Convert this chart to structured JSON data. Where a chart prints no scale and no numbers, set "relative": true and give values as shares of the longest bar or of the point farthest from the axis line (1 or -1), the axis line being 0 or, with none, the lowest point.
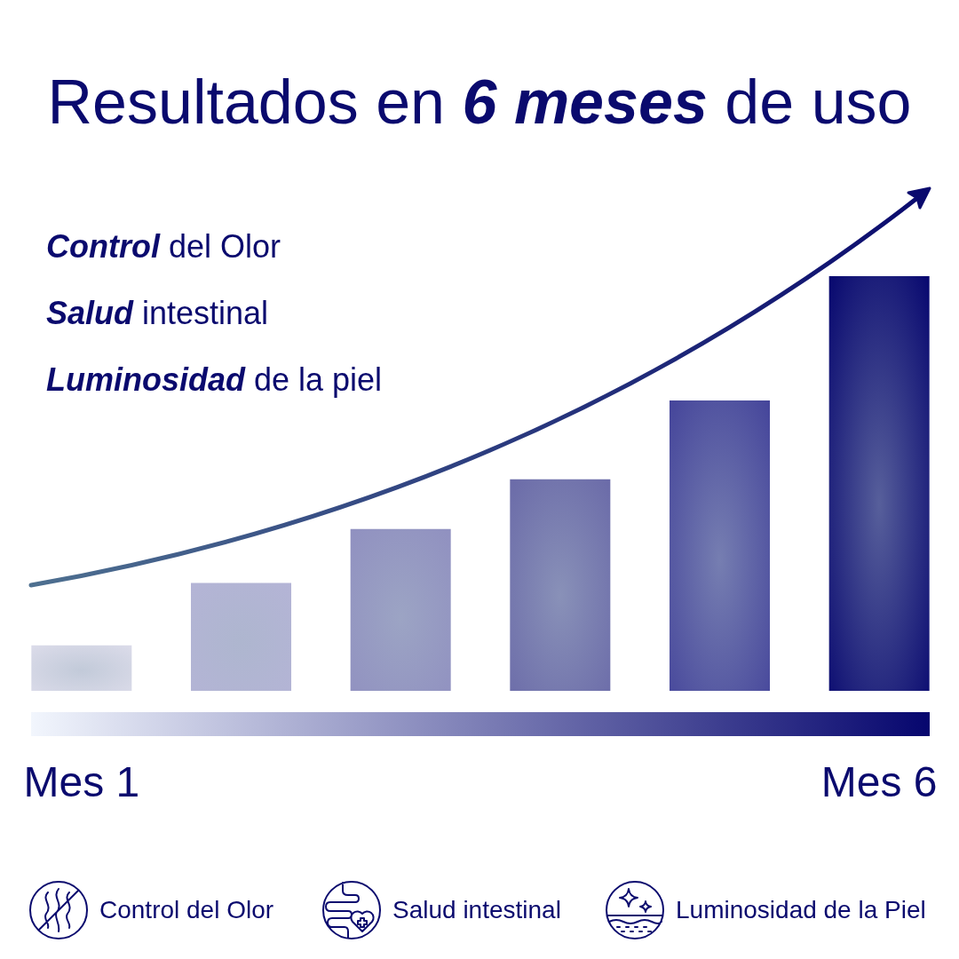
{
  "chart_data": {
    "type": "bar",
    "title": "Resultados en 6 meses de uso",
    "categories": [
      "Mes 1",
      null,
      null,
      null,
      null,
      "Mes 6"
    ],
    "values": [
      0.11,
      0.26,
      0.39,
      0.51,
      0.7,
      1
    ],
    "colors": [
      "#dcdcea",
      "#b4b4d6",
      "#9090c0",
      "#6a6aa8",
      "#44449a",
      "#06066e"
    ],
    "relative": true,
    "annotations": [
      "Control del Olor",
      "Salud intestinal",
      "Luminosidad de la piel",
      "Control del Olor",
      "Salud intestinal",
      "Luminosidad de la Piel"
    ]
  }
}
